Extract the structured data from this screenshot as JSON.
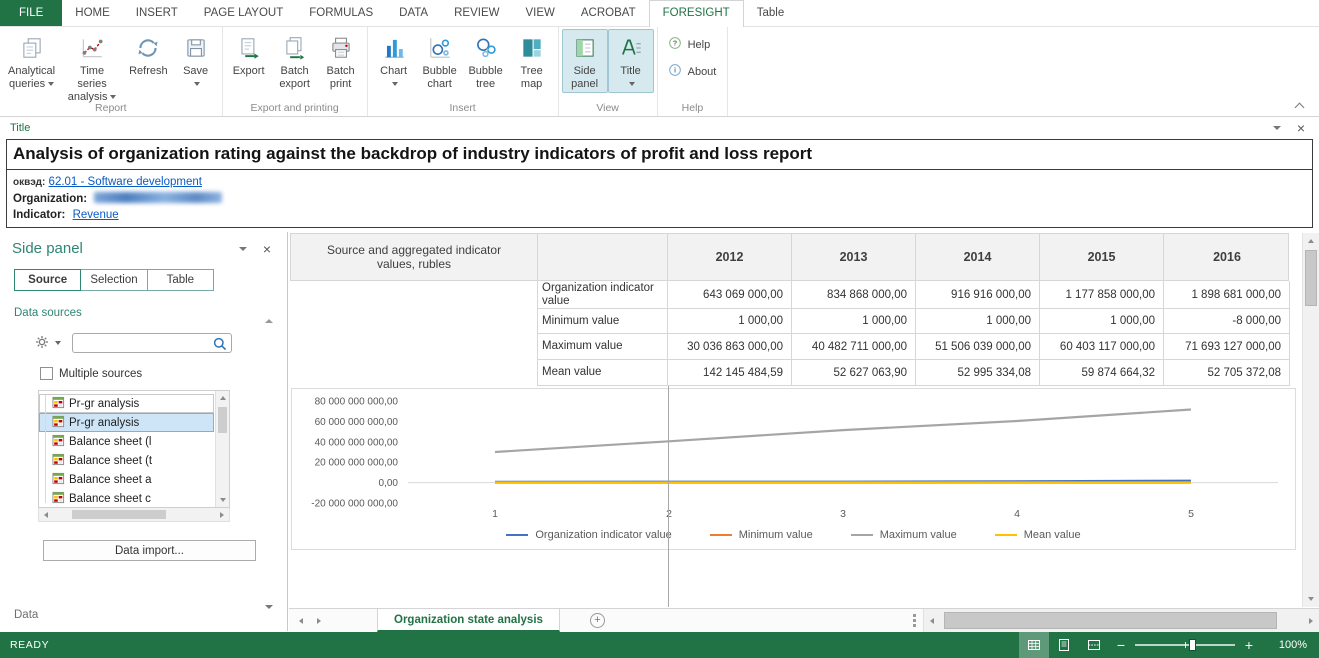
{
  "ribbon_tabs": [
    {
      "label": "FILE",
      "type": "file"
    },
    {
      "label": "HOME"
    },
    {
      "label": "INSERT"
    },
    {
      "label": "PAGE LAYOUT"
    },
    {
      "label": "FORMULAS"
    },
    {
      "label": "DATA"
    },
    {
      "label": "REVIEW"
    },
    {
      "label": "VIEW"
    },
    {
      "label": "ACROBAT"
    },
    {
      "label": "FORESIGHT",
      "active": true
    },
    {
      "label": "Table"
    }
  ],
  "ribbon_groups": [
    {
      "name": "Report",
      "buttons": [
        {
          "label": "Analytical\nqueries",
          "icon": "pages",
          "dropdown": true
        },
        {
          "label": "Time series\nanalysis",
          "icon": "timeseries",
          "dropdown": true
        },
        {
          "label": "Refresh",
          "icon": "refresh"
        },
        {
          "label": "Save",
          "icon": "save",
          "dropdown": true
        }
      ]
    },
    {
      "name": "Export and printing",
      "buttons": [
        {
          "label": "Export",
          "icon": "export"
        },
        {
          "label": "Batch\nexport",
          "icon": "batch-export"
        },
        {
          "label": "Batch\nprint",
          "icon": "batch-print"
        }
      ]
    },
    {
      "name": "Insert",
      "buttons": [
        {
          "label": "Chart",
          "icon": "chart",
          "dropdown": true
        },
        {
          "label": "Bubble\nchart",
          "icon": "bubble-chart"
        },
        {
          "label": "Bubble\ntree",
          "icon": "bubble-tree"
        },
        {
          "label": "Tree\nmap",
          "icon": "treemap"
        }
      ]
    },
    {
      "name": "View",
      "buttons": [
        {
          "label": "Side\npanel",
          "icon": "side-panel",
          "active": true
        },
        {
          "label": "Title",
          "icon": "title",
          "dropdown": true,
          "active": true
        }
      ]
    },
    {
      "name": "Help",
      "small": true,
      "buttons": [
        {
          "label": "Help",
          "icon": "help"
        },
        {
          "label": "About",
          "icon": "about"
        }
      ]
    }
  ],
  "title_panel": {
    "panel_label": "Title",
    "heading": "Analysis of organization rating against the backdrop of industry indicators of profit and loss report",
    "okved_label": "оквэд:",
    "okved_link": "62.01 - Software development",
    "organization_label": "Organization:",
    "organization_value": "(blurred)",
    "indicator_label": "Indicator:",
    "indicator_link": "Revenue"
  },
  "side_panel": {
    "title": "Side panel",
    "tabs": [
      {
        "label": "Source",
        "active": true
      },
      {
        "label": "Selection"
      },
      {
        "label": "Table"
      }
    ],
    "sections": {
      "data_sources": "Data sources",
      "data": "Data"
    },
    "search_value": "",
    "multiple_sources_label": "Multiple sources",
    "tree_items": [
      {
        "label": "Pr-gr analysis"
      },
      {
        "label": "Pr-gr analysis",
        "selected": true
      },
      {
        "label": "Balance sheet (l"
      },
      {
        "label": "Balance sheet (t"
      },
      {
        "label": "Balance sheet a"
      },
      {
        "label": "Balance sheet c"
      }
    ],
    "data_import_label": "Data import..."
  },
  "table": {
    "corner_header": "Source and aggregated indicator values, rubles",
    "years": [
      "2012",
      "2013",
      "2014",
      "2015",
      "2016"
    ],
    "rows": [
      {
        "label": "Organization indicator value",
        "values": [
          "643 069 000,00",
          "834 868 000,00",
          "916 916 000,00",
          "1 177 858 000,00",
          "1 898 681 000,00"
        ]
      },
      {
        "label": "Minimum value",
        "values": [
          "1 000,00",
          "1 000,00",
          "1 000,00",
          "1 000,00",
          "-8 000,00"
        ]
      },
      {
        "label": "Maximum value",
        "values": [
          "30 036 863 000,00",
          "40 482 711 000,00",
          "51 506 039 000,00",
          "60 403 117 000,00",
          "71 693 127 000,00"
        ]
      },
      {
        "label": "Mean value",
        "values": [
          "142 145 484,59",
          "52 627 063,90",
          "52 995 334,08",
          "59 874 664,32",
          "52 705 372,08"
        ]
      }
    ]
  },
  "chart_data": {
    "type": "line",
    "x": [
      "1",
      "2",
      "3",
      "4",
      "5"
    ],
    "series": [
      {
        "name": "Organization indicator value",
        "color": "#4472c4",
        "values": [
          643069000.0,
          834868000.0,
          916916000.0,
          1177858000.0,
          1898681000.0
        ]
      },
      {
        "name": "Minimum value",
        "color": "#ed7d31",
        "values": [
          1000.0,
          1000.0,
          1000.0,
          1000.0,
          -8000.0
        ]
      },
      {
        "name": "Maximum value",
        "color": "#a5a5a5",
        "values": [
          30036863000.0,
          40482711000.0,
          51506039000.0,
          60403117000.0,
          71693127000.0
        ]
      },
      {
        "name": "Mean value",
        "color": "#ffc000",
        "values": [
          142145484.59,
          52627063.9,
          52995334.08,
          59874664.32,
          52705372.08
        ]
      }
    ],
    "ylim": [
      -20000000000,
      80000000000
    ],
    "ytick_step": 20000000000,
    "ytick_labels": [
      "80 000 000 000,00",
      "60 000 000 000,00",
      "40 000 000 000,00",
      "20 000 000 000,00",
      "0,00",
      "-20 000 000 000,00"
    ],
    "grid": false,
    "legend_position": "bottom"
  },
  "sheet_bar": {
    "active_sheet": "Organization state analysis"
  },
  "status_bar": {
    "ready": "READY",
    "zoom": "100%"
  },
  "colors": {
    "brand_green": "#217346",
    "panel_teal": "#2e8673",
    "link_blue": "#0a5bc4"
  }
}
